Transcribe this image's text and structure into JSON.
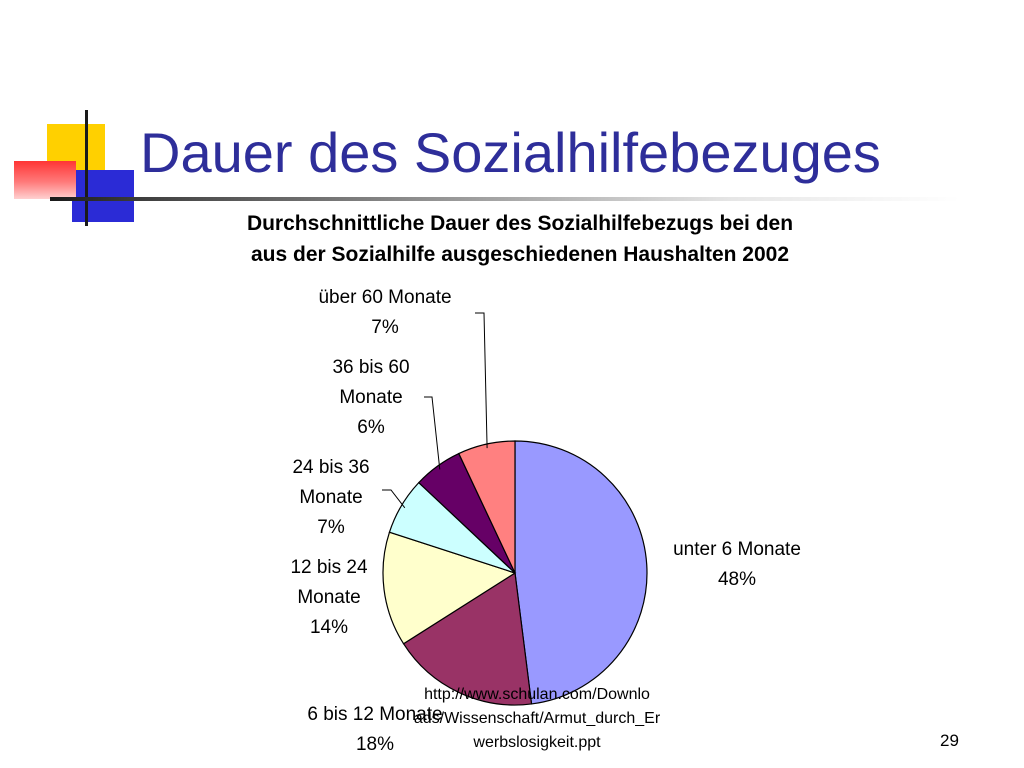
{
  "slide": {
    "title": "Dauer des Sozialhilfebezuges",
    "page_number": "29",
    "source_lines": [
      "http://www.schulan.com/Downlo",
      "ads/Wissenschaft/Armut_durch_Er",
      "werbslosigkeit.ppt"
    ]
  },
  "chart_data": {
    "type": "pie",
    "title_lines": [
      "Durchschnittliche Dauer des Sozialhilfebezugs bei den",
      "aus der Sozialhilfe ausgeschiedenen Haushalten 2002"
    ],
    "legend": "none",
    "slices": [
      {
        "name": "unter 6 Monate",
        "value": 48,
        "percent": "48%",
        "color": "#9999ff",
        "label_lines": [
          "unter 6 Monate",
          "48%"
        ]
      },
      {
        "name": "6 bis 12 Monate",
        "value": 18,
        "percent": "18%",
        "color": "#993366",
        "label_lines": [
          "6 bis 12 Monate",
          "18%"
        ]
      },
      {
        "name": "12 bis 24 Monate",
        "value": 14,
        "percent": "14%",
        "color": "#ffffcc",
        "label_lines": [
          "12 bis 24",
          "Monate",
          "14%"
        ]
      },
      {
        "name": "24 bis 36 Monate",
        "value": 7,
        "percent": "7%",
        "color": "#ccffff",
        "label_lines": [
          "24 bis 36",
          "Monate",
          "7%"
        ]
      },
      {
        "name": "36 bis 60 Monate",
        "value": 6,
        "percent": "6%",
        "color": "#660066",
        "label_lines": [
          "36 bis 60",
          "Monate",
          "6%"
        ]
      },
      {
        "name": "über 60 Monate",
        "value": 7,
        "percent": "7%",
        "color": "#ff8080",
        "label_lines": [
          "über 60 Monate",
          "7%"
        ]
      }
    ]
  }
}
